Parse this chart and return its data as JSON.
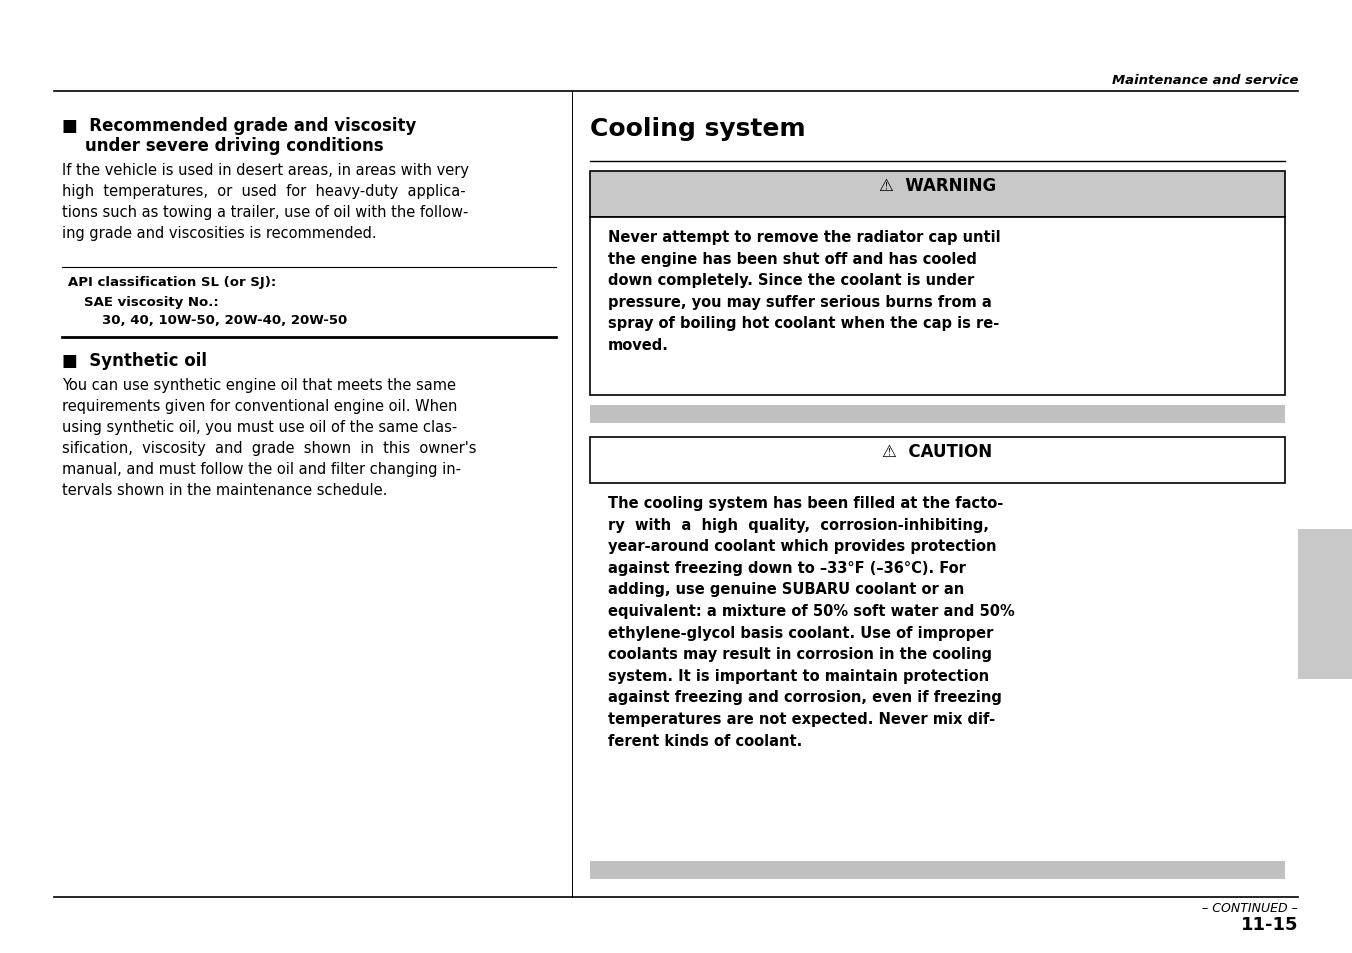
{
  "page_header_right": "Maintenance and service",
  "page_number": "11-15",
  "continued_text": "– CONTINUED –",
  "api_label": "API classification SL (or SJ):",
  "sae_label": "SAE viscosity No.:",
  "sae_values": "30, 40, 10W-50, 20W-40, 20W-50",
  "right_section_title": "Cooling system",
  "warning_header": "⚠  WARNING",
  "warning_bg": "#c8c8c8",
  "warning_border": "#000000",
  "warning_text": "Never attempt to remove the radiator cap until\nthe engine has been shut off and has cooled\ndown completely. Since the coolant is under\npressure, you may suffer serious burns from a\nspray of boiling hot coolant when the cap is re-\nmoved.",
  "caution_header": "⚠  CAUTION",
  "caution_bg": "#ffffff",
  "caution_border": "#000000",
  "caution_text": "The cooling system has been filled at the facto-\nry  with  a  high  quality,  corrosion-inhibiting,\nyear-around coolant which provides protection\nagainst freezing down to –33°F (–36°C). For\nadding, use genuine SUBARU coolant or an\nequivalent: a mixture of 50% soft water and 50%\nethylene-glycol basis coolant. Use of improper\ncoolants may result in corrosion in the cooling\nsystem. It is important to maintain protection\nagainst freezing and corrosion, even if freezing\ntemperatures are not expected. Never mix dif-\nferent kinds of coolant.",
  "bg_color": "#ffffff",
  "text_color": "#000000",
  "gray_bar_color": "#c0c0c0",
  "gray_tab_color": "#c8c8c8"
}
